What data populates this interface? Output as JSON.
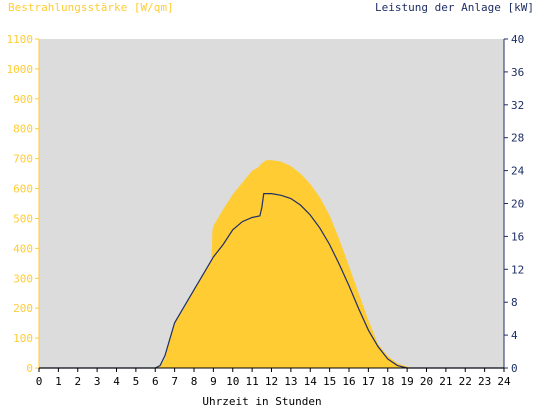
{
  "chart_data": {
    "type": "area",
    "title_left": "Bestrahlungsstärke [W/qm]",
    "title_right": "Leistung der Anlage [kW]",
    "xlabel": "Uhrzeit in Stunden",
    "x_ticks": [
      "0",
      "1",
      "2",
      "3",
      "4",
      "5",
      "6",
      "7",
      "8",
      "9",
      "10",
      "11",
      "12",
      "13",
      "14",
      "15",
      "16",
      "17",
      "18",
      "19",
      "20",
      "21",
      "22",
      "23",
      "24"
    ],
    "xlim": [
      0,
      24
    ],
    "y_left": {
      "label": "Bestrahlungsstärke [W/qm]",
      "lim": [
        0,
        1100
      ],
      "ticks": [
        "0",
        "100",
        "200",
        "300",
        "400",
        "500",
        "600",
        "700",
        "800",
        "900",
        "1000",
        "1100"
      ]
    },
    "y_right": {
      "label": "Leistung der Anlage [kW]",
      "lim": [
        0,
        40
      ],
      "ticks": [
        "0",
        "4",
        "8",
        "12",
        "16",
        "20",
        "24",
        "28",
        "32",
        "36",
        "40"
      ]
    },
    "grid": false,
    "series": [
      {
        "name": "Bestrahlungsstärke [W/qm]",
        "axis": "left",
        "kind": "area",
        "x": [
          0,
          6.0,
          6.25,
          6.5,
          6.75,
          7.0,
          7.5,
          8.0,
          8.5,
          8.9,
          8.95,
          9.0,
          9.5,
          10.0,
          10.5,
          11.0,
          11.3,
          11.5,
          11.75,
          12.0,
          12.5,
          13.0,
          13.5,
          14.0,
          14.5,
          15.0,
          15.5,
          16.0,
          16.5,
          17.0,
          17.5,
          18.0,
          18.5,
          19.0,
          19.2,
          24
        ],
        "y": [
          0,
          0,
          5,
          30,
          100,
          150,
          200,
          260,
          320,
          360,
          460,
          475,
          530,
          580,
          620,
          660,
          670,
          685,
          695,
          695,
          690,
          675,
          650,
          615,
          570,
          510,
          430,
          340,
          250,
          160,
          80,
          40,
          15,
          5,
          0,
          0
        ]
      },
      {
        "name": "Leistung der Anlage [kW]",
        "axis": "right",
        "kind": "line",
        "x": [
          0,
          6.0,
          6.25,
          6.5,
          6.75,
          7.0,
          7.5,
          8.0,
          8.5,
          9.0,
          9.5,
          10.0,
          10.5,
          11.0,
          11.4,
          11.5,
          11.6,
          12.0,
          12.5,
          13.0,
          13.5,
          14.0,
          14.5,
          15.0,
          15.5,
          16.0,
          16.5,
          17.0,
          17.5,
          18.0,
          18.5,
          19.0,
          24
        ],
        "y": [
          0,
          0,
          0.3,
          1.5,
          3.5,
          5.5,
          7.5,
          9.5,
          11.5,
          13.5,
          15,
          16.8,
          17.8,
          18.3,
          18.5,
          19.5,
          21.2,
          21.2,
          21.0,
          20.6,
          19.8,
          18.6,
          17.0,
          15.0,
          12.6,
          10.0,
          7.2,
          4.6,
          2.6,
          1.1,
          0.3,
          0,
          0
        ]
      }
    ],
    "colors": {
      "background": "#ffffff",
      "plot_area": "#dcdcdc",
      "irradiance_fill": "#ffcc33",
      "irradiance_text": "#ffcc33",
      "power_line": "#1f2f66",
      "power_text": "#1f2f66",
      "axis_text": "#000000"
    }
  }
}
